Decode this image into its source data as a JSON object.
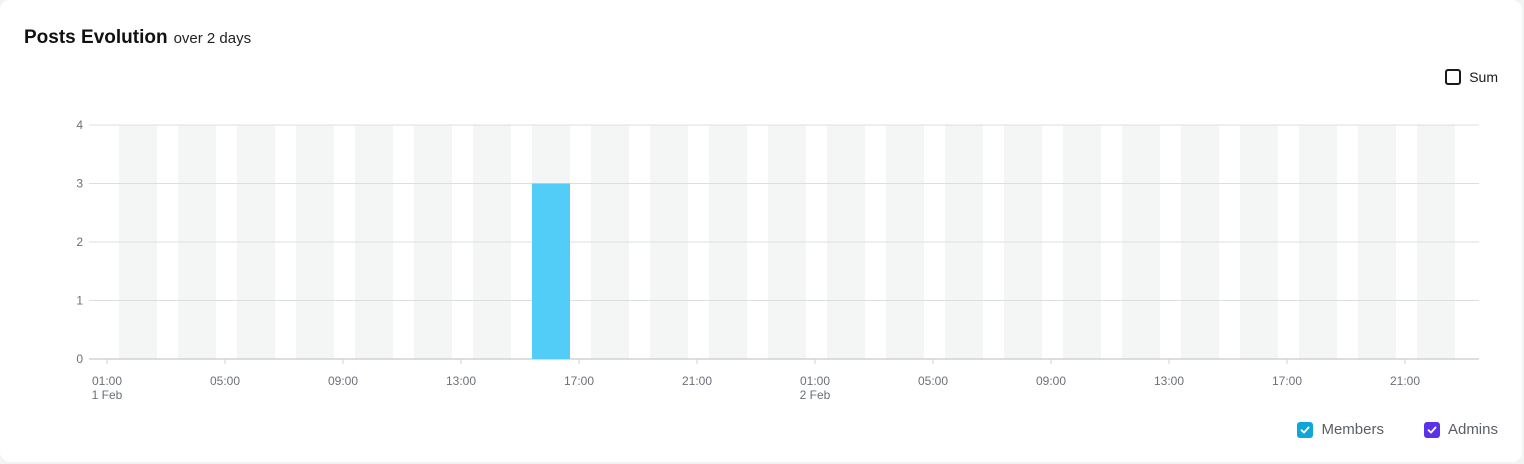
{
  "header": {
    "title": "Posts Evolution",
    "subtitle": "over 2 days"
  },
  "sum_toggle": {
    "label": "Sum",
    "checked": false
  },
  "legend": [
    {
      "label": "Members",
      "color": "#0ea5d9",
      "checked": true
    },
    {
      "label": "Admins",
      "color": "#5b33e6",
      "checked": true
    }
  ],
  "chart_data": {
    "type": "bar",
    "stacked": true,
    "ylim": [
      0,
      4
    ],
    "y_ticks": [
      0,
      1,
      2,
      3,
      4
    ],
    "grid": true,
    "legend_position": "bottom-right",
    "x_tick_labels": [
      {
        "time": "01:00",
        "date": "1 Feb"
      },
      {
        "time": "05:00",
        "date": ""
      },
      {
        "time": "09:00",
        "date": ""
      },
      {
        "time": "13:00",
        "date": ""
      },
      {
        "time": "17:00",
        "date": ""
      },
      {
        "time": "21:00",
        "date": ""
      },
      {
        "time": "01:00",
        "date": "2 Feb"
      },
      {
        "time": "05:00",
        "date": ""
      },
      {
        "time": "09:00",
        "date": ""
      },
      {
        "time": "13:00",
        "date": ""
      },
      {
        "time": "17:00",
        "date": ""
      },
      {
        "time": "21:00",
        "date": ""
      }
    ],
    "background_band_color": "#f4f5f5",
    "series": [
      {
        "name": "Members",
        "color": "#52cdf7",
        "values": [
          0,
          0,
          0,
          0,
          0,
          0,
          0,
          3,
          0,
          0,
          0,
          0,
          0,
          0,
          0,
          0,
          0,
          0,
          0,
          0,
          0,
          0,
          0
        ]
      },
      {
        "name": "Admins",
        "color": "#5b33e6",
        "values": [
          0,
          0,
          0,
          0,
          0,
          0,
          0,
          0,
          0,
          0,
          0,
          0,
          0,
          0,
          0,
          0,
          0,
          0,
          0,
          0,
          0,
          0,
          0
        ]
      }
    ]
  }
}
